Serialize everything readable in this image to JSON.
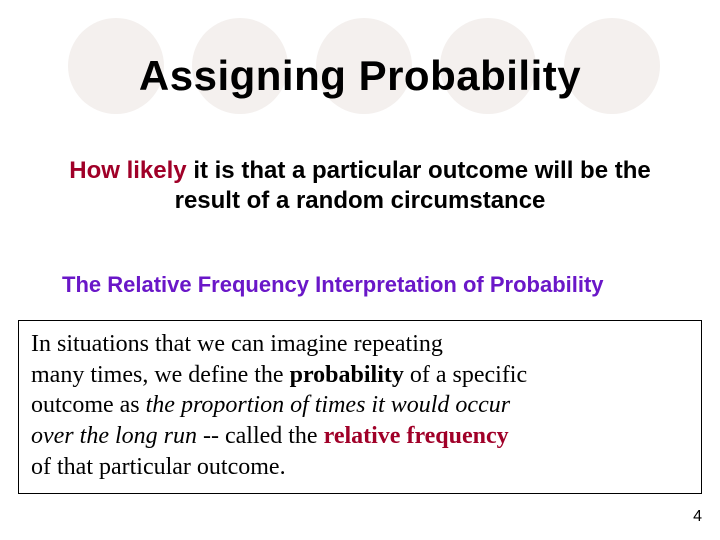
{
  "decor": {
    "circle_count": 5,
    "circle_color": "#f4f0ee"
  },
  "title": {
    "text": "Assigning  Probability",
    "color": "#000000",
    "fontsize": 42
  },
  "subtitle": {
    "emph_text": "How likely ",
    "plain_text": "it is that a particular outcome will be the result of a random circumstance",
    "emph_color": "#a00028",
    "fontsize": 24
  },
  "section_heading": {
    "text": "The Relative Frequency Interpretation of Probability",
    "color": "#6a17c8",
    "fontsize": 22
  },
  "definition": {
    "part1": "In situations that we can imagine repeating",
    "part2": "many times, we define the ",
    "bold1": "probability",
    "part3": " of a specific",
    "part4": "outcome as ",
    "ital1": "the proportion of times it would occur",
    "ital2": "over the long run",
    "part5": " -- called the ",
    "rf": "relative frequency",
    "part6": "of that particular outcome.",
    "border_color": "#000000",
    "fontsize": 24,
    "rf_color": "#a00028"
  },
  "page_number": "4"
}
